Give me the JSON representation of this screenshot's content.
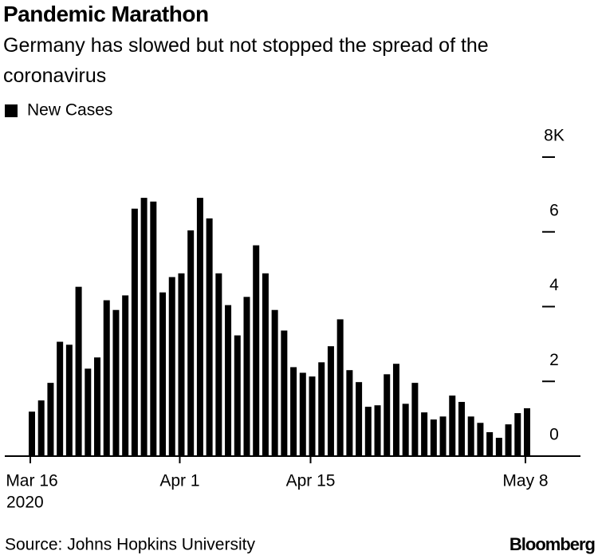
{
  "chart_data": {
    "type": "bar",
    "title": "Pandemic Marathon",
    "subtitle": "Germany has slowed but not stopped the spread of the coronavirus",
    "source": "Source: Johns Hopkins University",
    "brand": "Bloomberg",
    "series": [
      {
        "name": "New Cases",
        "color": "#000000",
        "values": [
          1.19,
          1.49,
          1.96,
          3.06,
          2.98,
          4.53,
          2.34,
          2.64,
          4.17,
          3.91,
          4.3,
          6.62,
          6.91,
          6.81,
          4.38,
          4.79,
          4.89,
          6.04,
          6.91,
          6.36,
          4.89,
          4.04,
          3.23,
          4.26,
          5.64,
          4.89,
          3.91,
          3.36,
          2.38,
          2.23,
          2.13,
          2.51,
          2.94,
          3.66,
          2.3,
          1.98,
          1.32,
          1.36,
          2.19,
          2.47,
          1.4,
          1.96,
          1.17,
          0.98,
          1.06,
          1.62,
          1.45,
          1.06,
          0.89,
          0.64,
          0.49,
          0.85,
          1.15,
          1.28
        ]
      }
    ],
    "categories": [
      "Mar 16",
      null,
      null,
      null,
      null,
      null,
      null,
      null,
      null,
      null,
      null,
      null,
      null,
      null,
      null,
      null,
      "Apr 1",
      null,
      null,
      null,
      null,
      null,
      null,
      null,
      null,
      null,
      null,
      null,
      null,
      null,
      "Apr 15",
      null,
      null,
      null,
      null,
      null,
      null,
      null,
      null,
      null,
      null,
      null,
      null,
      null,
      null,
      null,
      null,
      null,
      null,
      null,
      null,
      null,
      null,
      "May 8"
    ],
    "x_year": "2020",
    "ylim": [
      0,
      8
    ],
    "yticks": [
      0,
      2,
      4,
      6,
      {
        "value": 8,
        "label": "8K"
      }
    ],
    "legend": "top-left"
  }
}
